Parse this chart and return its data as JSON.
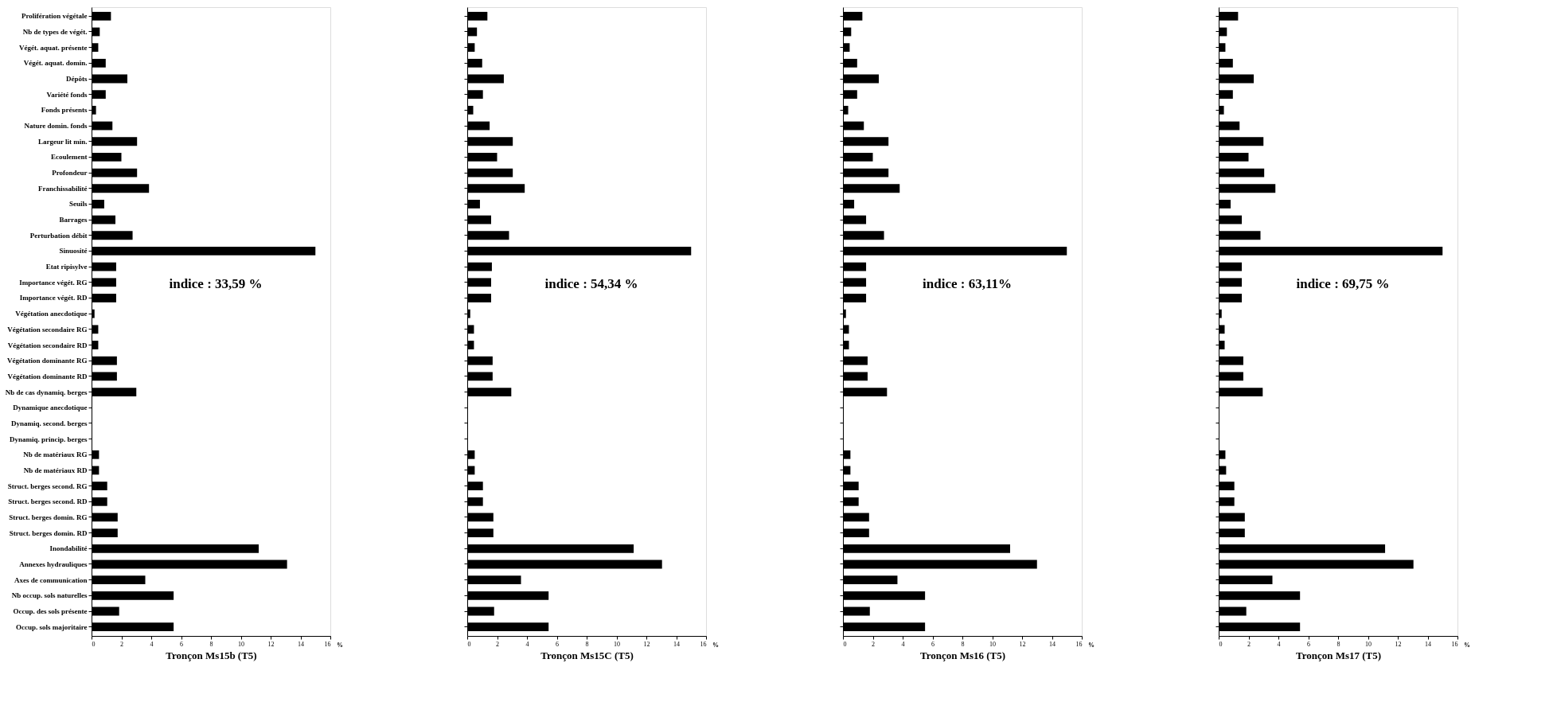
{
  "chart_data": [
    {
      "type": "bar",
      "orientation": "horizontal",
      "xlabel": "Tronçon Ms15b (T5)",
      "annotations": [
        "indice : 33,59 %",
        "%"
      ],
      "xlim": [
        0,
        16
      ],
      "xticks": [
        0,
        2,
        4,
        6,
        8,
        10,
        12,
        14,
        16
      ],
      "grid": false,
      "categories": [
        "Prolifération végétale",
        "Nb de types de végét.",
        "Végét. aquat. présente",
        "Végét. aquat. domin.",
        "Dépôts",
        "Variété fonds",
        "Fonds présents",
        "Nature domin. fonds",
        "Largeur lit min.",
        "Ecoulement",
        "Profondeur",
        "Franchissabilité",
        "Seuils",
        "Barrages",
        "Perturbation débit",
        "Sinuosité",
        "Etat ripisylve",
        "Importance végét. RG",
        "Importance végét. RD",
        "Végétation anecdotique",
        "Végétation secondaire RG",
        "Végétation secondaire RD",
        "Végétation dominante RG",
        "Végétation dominante RD",
        "Nb de cas dynamiq. berges",
        "Dynamique anecdotique",
        "Dynamiq. second. berges",
        "Dynamiq. princip. berges",
        "Nb de matériaux RG",
        "Nb de matériaux RD",
        "Struct. berges second. RG",
        "Struct. berges second. RD",
        "Struct. berges domin. RG",
        "Struct. berges domin. RD",
        "Inondabilité",
        "Annexes hydrauliques",
        "Axes de communication",
        "Nb occup. sols naturelles",
        "Occup. des sols présente",
        "Occup. sols majoritaire"
      ],
      "series": [
        {
          "color": "#000000",
          "values": [
            1.3,
            0.55,
            0.45,
            0.95,
            2.4,
            0.95,
            0.3,
            1.4,
            3.05,
            2.0,
            3.05,
            3.85,
            0.85,
            1.6,
            2.75,
            15.0,
            1.65,
            1.65,
            1.65,
            0.2,
            0.45,
            0.45,
            1.7,
            1.7,
            3.0,
            0,
            0,
            0,
            0.5,
            0.5,
            1.05,
            1.05,
            1.75,
            1.75,
            11.2,
            13.1,
            3.6,
            5.5,
            1.85,
            5.5
          ]
        }
      ]
    },
    {
      "type": "bar",
      "orientation": "horizontal",
      "xlabel": "Tronçon Ms15C (T5)",
      "annotations": [
        "indice : 54,34 %",
        "%"
      ],
      "xlim": [
        0,
        16
      ],
      "xticks": [
        0,
        2,
        4,
        6,
        8,
        10,
        12,
        14,
        16
      ],
      "grid": false,
      "tick_labels": "x",
      "categories": [
        null,
        null,
        null,
        null,
        null,
        null,
        null,
        null,
        null,
        null,
        null,
        null,
        null,
        null,
        null,
        null,
        null,
        null,
        null,
        null,
        null,
        null,
        null,
        null,
        null,
        null,
        null,
        null,
        null,
        null,
        null,
        null,
        null,
        null,
        null,
        null,
        null,
        null,
        null,
        null
      ],
      "series": [
        {
          "color": "#000000",
          "values": [
            1.35,
            0.65,
            0.5,
            1.0,
            2.45,
            1.05,
            0.4,
            1.5,
            3.05,
            2.0,
            3.05,
            3.85,
            0.85,
            1.6,
            2.8,
            15.0,
            1.65,
            1.6,
            1.6,
            0.2,
            0.45,
            0.45,
            1.7,
            1.7,
            2.95,
            0,
            0,
            0,
            0.5,
            0.5,
            1.05,
            1.05,
            1.75,
            1.75,
            11.15,
            13.05,
            3.6,
            5.45,
            1.8,
            5.45
          ]
        }
      ]
    },
    {
      "type": "bar",
      "orientation": "horizontal",
      "xlabel": "Tronçon Ms16 (T5)",
      "annotations": [
        "indice : 63,11%",
        "%"
      ],
      "xlim": [
        0,
        16
      ],
      "xticks": [
        0,
        2,
        4,
        6,
        8,
        10,
        12,
        14,
        16
      ],
      "grid": false,
      "tick_labels": "x",
      "categories": [
        null,
        null,
        null,
        null,
        null,
        null,
        null,
        null,
        null,
        null,
        null,
        null,
        null,
        null,
        null,
        null,
        null,
        null,
        null,
        null,
        null,
        null,
        null,
        null,
        null,
        null,
        null,
        null,
        null,
        null,
        null,
        null,
        null,
        null,
        null,
        null,
        null,
        null,
        null,
        null
      ],
      "series": [
        {
          "color": "#000000",
          "values": [
            1.3,
            0.55,
            0.45,
            0.95,
            2.4,
            0.95,
            0.35,
            1.4,
            3.05,
            2.0,
            3.05,
            3.8,
            0.75,
            1.55,
            2.75,
            15.0,
            1.55,
            1.55,
            1.55,
            0.2,
            0.4,
            0.4,
            1.65,
            1.65,
            2.95,
            0,
            0,
            0,
            0.5,
            0.5,
            1.05,
            1.05,
            1.75,
            1.75,
            11.2,
            13.0,
            3.65,
            5.5,
            1.8,
            5.5
          ]
        }
      ]
    },
    {
      "type": "bar",
      "orientation": "horizontal",
      "xlabel": "Tronçon Ms17 (T5)",
      "annotations": [
        "indice : 69,75 %",
        "%"
      ],
      "xlim": [
        0,
        16
      ],
      "xticks": [
        0,
        2,
        4,
        6,
        8,
        10,
        12,
        14,
        16
      ],
      "grid": false,
      "tick_labels": "x",
      "categories": [
        null,
        null,
        null,
        null,
        null,
        null,
        null,
        null,
        null,
        null,
        null,
        null,
        null,
        null,
        null,
        null,
        null,
        null,
        null,
        null,
        null,
        null,
        null,
        null,
        null,
        null,
        null,
        null,
        null,
        null,
        null,
        null,
        null,
        null,
        null,
        null,
        null,
        null,
        null,
        null
      ],
      "series": [
        {
          "color": "#000000",
          "values": [
            1.3,
            0.55,
            0.45,
            0.95,
            2.35,
            0.95,
            0.35,
            1.4,
            3.0,
            2.0,
            3.05,
            3.8,
            0.8,
            1.55,
            2.8,
            15.0,
            1.55,
            1.55,
            1.55,
            0.2,
            0.4,
            0.4,
            1.65,
            1.65,
            2.95,
            0,
            0,
            0,
            0.45,
            0.5,
            1.05,
            1.05,
            1.75,
            1.75,
            11.15,
            13.05,
            3.6,
            5.45,
            1.85,
            5.45
          ]
        }
      ]
    }
  ]
}
